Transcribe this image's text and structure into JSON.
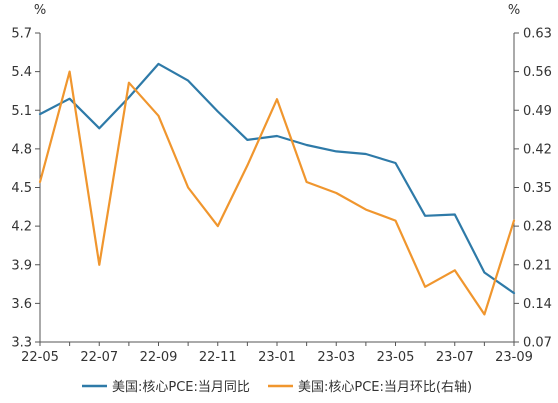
{
  "chart_data": {
    "type": "line",
    "y_left_unit": "%",
    "y_right_unit": "%",
    "x_tick_labels": [
      "22-05",
      "22-07",
      "22-09",
      "22-11",
      "23-01",
      "23-03",
      "23-05",
      "23-07",
      "23-09"
    ],
    "x": [
      "22-05",
      "22-06",
      "22-07",
      "22-08",
      "22-09",
      "22-10",
      "22-11",
      "22-12",
      "23-01",
      "23-02",
      "23-03",
      "23-04",
      "23-05",
      "23-06",
      "23-07",
      "23-08",
      "23-09"
    ],
    "ylim_left": [
      3.3,
      5.7
    ],
    "yticks_left": [
      "5.7",
      "5.4",
      "5.1",
      "4.8",
      "4.5",
      "4.2",
      "3.9",
      "3.6",
      "3.3"
    ],
    "ylim_right": [
      0.07,
      0.63
    ],
    "yticks_right": [
      "0.63",
      "0.56",
      "0.49",
      "0.42",
      "0.35",
      "0.28",
      "0.21",
      "0.14",
      "0.07"
    ],
    "grid": false,
    "legend_position": "bottom",
    "series": [
      {
        "name": "美国:核心PCE:当月同比",
        "axis": "left",
        "color": "#2e7aa8",
        "values": [
          5.07,
          5.19,
          4.96,
          5.2,
          5.46,
          5.33,
          5.09,
          4.87,
          4.9,
          4.83,
          4.78,
          4.76,
          4.69,
          4.28,
          4.29,
          3.84,
          3.68
        ]
      },
      {
        "name": "美国:核心PCE:当月环比(右轴)",
        "axis": "right",
        "color": "#f0962e",
        "values": [
          0.36,
          0.56,
          0.21,
          0.54,
          0.48,
          0.35,
          0.28,
          0.39,
          0.51,
          0.36,
          0.34,
          0.31,
          0.29,
          0.17,
          0.2,
          0.12,
          0.29
        ]
      }
    ]
  }
}
